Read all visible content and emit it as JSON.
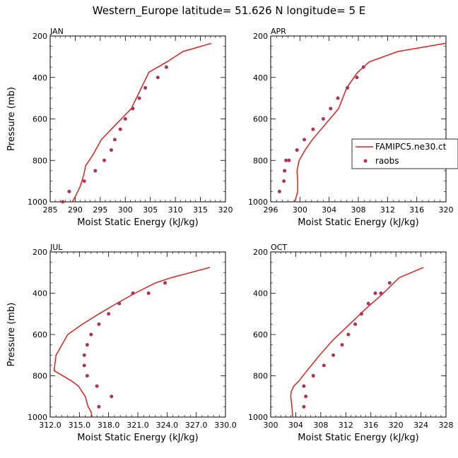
{
  "figure": {
    "title": "Western_Europe  latitude= 51.626 N longitude= 5 E",
    "colors": {
      "model": "#e0201e",
      "obs": "#b03060"
    }
  },
  "legend": {
    "model": "FAMIPC5.ne30.ct",
    "obs": "raobs"
  },
  "chart_data": [
    {
      "type": "line",
      "title": "JAN",
      "xlabel": "Moist Static Energy (kJ/kg)",
      "ylabel": "Pressure (mb)",
      "xlim": [
        285,
        320
      ],
      "ylim": [
        1000,
        200
      ],
      "xticks": [
        "285",
        "290",
        "295",
        "300",
        "305",
        "310",
        "315",
        "320"
      ],
      "yticks": [
        "200",
        "400",
        "600",
        "800",
        "1000"
      ],
      "series": [
        {
          "name": "FAMIPC5.ne30.ct",
          "kind": "line",
          "x": [
            289.4,
            290.0,
            291.0,
            291.7,
            292.1,
            293.5,
            295.2,
            297.2,
            299.2,
            301.2,
            303.2,
            304.7,
            308.3,
            311.5,
            317.2
          ],
          "y": [
            1000,
            975,
            925,
            870,
            825,
            775,
            700,
            650,
            600,
            550,
            450,
            375,
            325,
            275,
            235
          ]
        },
        {
          "name": "raobs",
          "kind": "scatter",
          "x": [
            287.5,
            288.8,
            291.8,
            294.0,
            295.8,
            297.2,
            297.9,
            299.0,
            300.0,
            301.5,
            302.8,
            304.0,
            306.5,
            308.2
          ],
          "y": [
            1000,
            950,
            900,
            850,
            800,
            750,
            700,
            650,
            600,
            550,
            500,
            450,
            400,
            350
          ]
        }
      ]
    },
    {
      "type": "line",
      "title": "APR",
      "xlabel": "Moist Static Energy (kJ/kg)",
      "ylabel": "",
      "xlim": [
        296,
        320
      ],
      "ylim": [
        1000,
        200
      ],
      "xticks": [
        "296",
        "300",
        "304",
        "308",
        "312",
        "316",
        "320"
      ],
      "yticks": [
        "200",
        "400",
        "600",
        "800",
        "1000"
      ],
      "series": [
        {
          "name": "FAMIPC5.ne30.ct",
          "kind": "line",
          "x": [
            299.3,
            299.7,
            299.7,
            299.6,
            299.9,
            300.7,
            301.7,
            302.9,
            304.1,
            305.3,
            306.4,
            307.9,
            309.5,
            313.4,
            320.0
          ],
          "y": [
            1000,
            950,
            900,
            850,
            800,
            750,
            700,
            650,
            600,
            550,
            450,
            375,
            325,
            275,
            235
          ]
        },
        {
          "name": "raobs",
          "kind": "scatter",
          "x": [
            297.2,
            297.8,
            297.9,
            298.1,
            298.5,
            299.6,
            300.6,
            301.8,
            303.2,
            304.2,
            305.2,
            306.5,
            307.8,
            308.7
          ],
          "y": [
            950,
            900,
            850,
            800,
            800,
            750,
            700,
            650,
            600,
            550,
            500,
            450,
            400,
            350
          ]
        }
      ]
    },
    {
      "type": "line",
      "title": "JUL",
      "xlabel": "Moist Static Energy (kJ/kg)",
      "ylabel": "Pressure (mb)",
      "xlim": [
        312,
        330
      ],
      "ylim": [
        1000,
        200
      ],
      "xticks": [
        "312.0",
        "315.0",
        "318.0",
        "321.0",
        "324.0",
        "327.0",
        "330.0"
      ],
      "yticks": [
        "200",
        "400",
        "600",
        "800",
        "1000"
      ],
      "series": [
        {
          "name": "FAMIPC5.ne30.ct",
          "kind": "line",
          "x": [
            316.3,
            316.2,
            315.9,
            315.6,
            314.9,
            314.2,
            312.4,
            312.6,
            313.8,
            315.3,
            317.0,
            318.8,
            320.7,
            322.8,
            324.4,
            328.4
          ],
          "y": [
            1000,
            975,
            950,
            900,
            850,
            825,
            775,
            700,
            600,
            550,
            500,
            450,
            400,
            350,
            325,
            275
          ]
        },
        {
          "name": "raobs",
          "kind": "scatter",
          "x": [
            317.0,
            318.3,
            316.8,
            315.8,
            315.5,
            315.5,
            315.8,
            316.2,
            317.0,
            318.0,
            319.1,
            320.5,
            322.1,
            323.8
          ],
          "y": [
            950,
            900,
            850,
            800,
            750,
            700,
            650,
            600,
            550,
            500,
            450,
            400,
            400,
            350
          ]
        }
      ]
    },
    {
      "type": "line",
      "title": "OCT",
      "xlabel": "Moist Static Energy (kJ/kg)",
      "ylabel": "",
      "xlim": [
        300,
        328
      ],
      "ylim": [
        1000,
        200
      ],
      "xticks": [
        "300",
        "304",
        "308",
        "312",
        "316",
        "320",
        "324",
        "328"
      ],
      "yticks": [
        "200",
        "400",
        "600",
        "800",
        "1000"
      ],
      "series": [
        {
          "name": "FAMIPC5.ne30.ct",
          "kind": "line",
          "x": [
            303.5,
            303.4,
            303.2,
            303.3,
            303.7,
            304.5,
            305.8,
            307.8,
            310.0,
            312.6,
            315.2,
            318.0,
            320.5,
            324.4
          ],
          "y": [
            1000,
            950,
            900,
            875,
            850,
            825,
            775,
            700,
            625,
            550,
            475,
            400,
            325,
            275
          ]
        },
        {
          "name": "raobs",
          "kind": "scatter",
          "x": [
            305.3,
            305.6,
            305.3,
            306.8,
            308.5,
            310.0,
            311.4,
            312.4,
            313.5,
            314.5,
            315.6,
            316.7,
            317.6,
            319.0
          ],
          "y": [
            950,
            900,
            850,
            800,
            750,
            700,
            650,
            600,
            550,
            500,
            450,
            400,
            400,
            350
          ]
        }
      ]
    }
  ]
}
